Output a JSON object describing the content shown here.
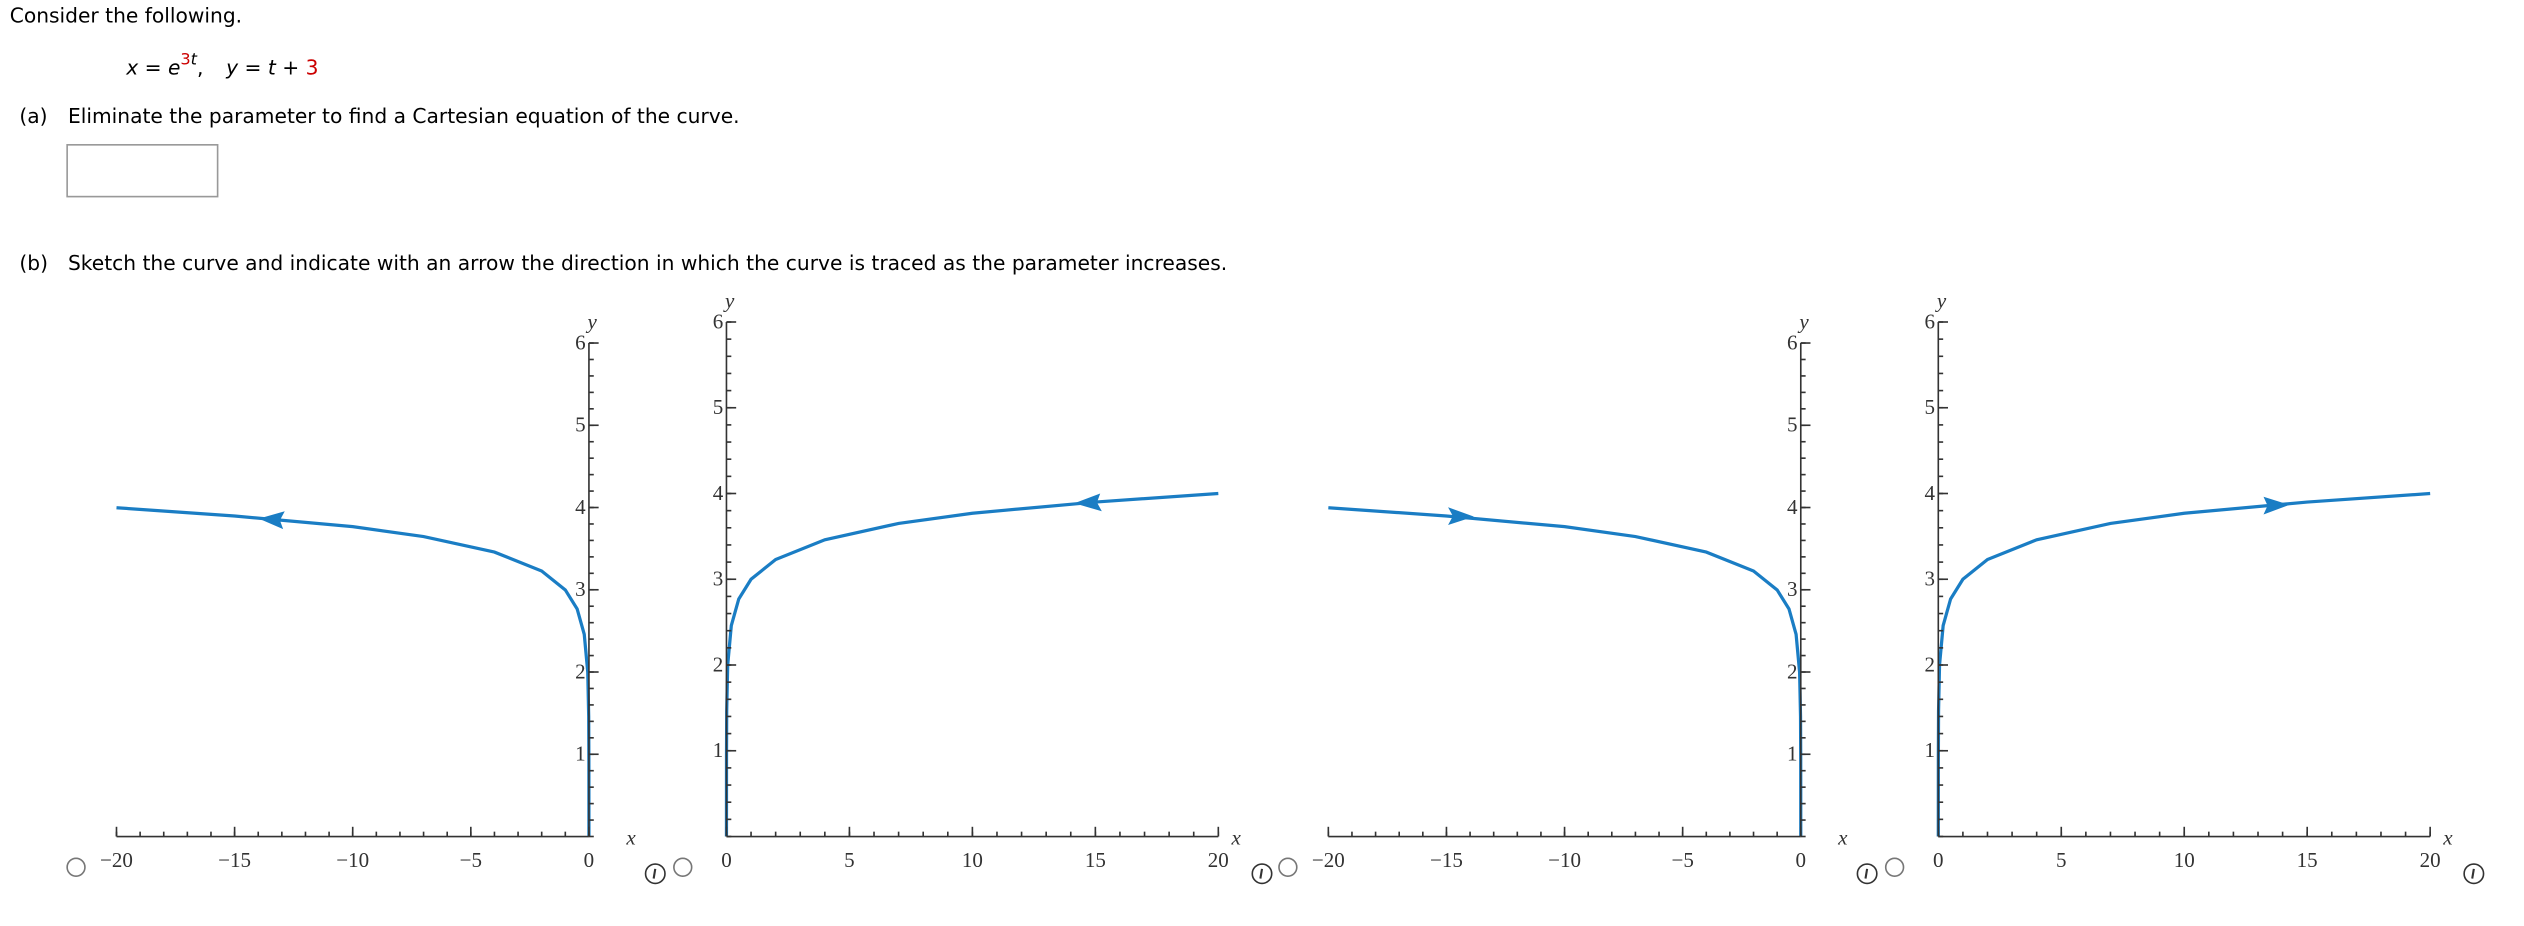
{
  "header": {
    "prompt": "Consider the following.",
    "equation": {
      "x_left": "x = e",
      "x_exp_coef": "3",
      "x_exp_var": "t",
      "separator": ",",
      "y_left": "y = t + ",
      "y_const": "3"
    }
  },
  "part_a": {
    "label": "(a)",
    "text": "Eliminate the parameter to find a Cartesian equation of the curve."
  },
  "part_b": {
    "label": "(b)",
    "text": "Sketch the curve and indicate with an arrow the direction in which the curve is traced as the parameter increases."
  },
  "graphs": [
    {
      "x_label": "x",
      "y_label": "y",
      "xlim": [
        -20,
        0
      ],
      "ylim": [
        0,
        6
      ],
      "xticks": [
        {
          "value": -20,
          "label": "−20"
        },
        {
          "value": -15,
          "label": "−15"
        },
        {
          "value": -10,
          "label": "−10"
        },
        {
          "value": -5,
          "label": "−5"
        },
        0
      ],
      "yticks": [
        1,
        2,
        3,
        4,
        5,
        6
      ]
    },
    {
      "x_label": "x",
      "y_label": "y",
      "xlim": [
        0,
        20
      ],
      "ylim": [
        0,
        6
      ],
      "xticks": [
        0,
        5,
        10,
        15,
        20
      ],
      "yticks": [
        1,
        2,
        3,
        4,
        5,
        6
      ]
    },
    {
      "x_label": "x",
      "y_label": "y",
      "xlim": [
        -20,
        0
      ],
      "ylim": [
        0,
        6
      ],
      "xticks": [
        {
          "value": -20,
          "label": "−20"
        },
        {
          "value": -15,
          "label": "−15"
        },
        {
          "value": -10,
          "label": "−10"
        },
        {
          "value": -5,
          "label": "−5"
        },
        0
      ],
      "yticks": [
        1,
        2,
        3,
        4,
        5,
        6
      ]
    },
    {
      "x_label": "x",
      "y_label": "y",
      "xlim": [
        0,
        20
      ],
      "ylim": [
        0,
        6
      ],
      "xticks": [
        0,
        5,
        10,
        15,
        20
      ],
      "yticks": [
        1,
        2,
        3,
        4,
        5,
        6
      ]
    }
  ]
}
